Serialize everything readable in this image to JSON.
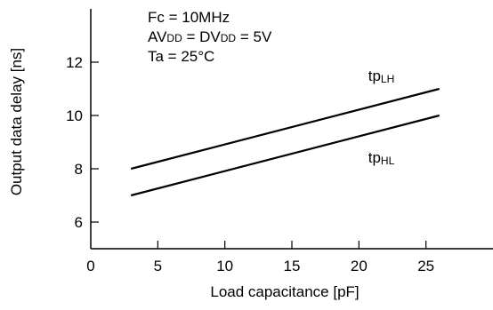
{
  "chart_data": {
    "type": "line",
    "title": "",
    "xlabel": "Load capacitance [pF]",
    "ylabel": "Output data delay [ns]",
    "xlim": [
      0,
      30
    ],
    "ylim": [
      5,
      14
    ],
    "x_ticks": [
      0,
      5,
      10,
      15,
      20,
      25
    ],
    "y_ticks": [
      6,
      8,
      10,
      12
    ],
    "grid": false,
    "conditions": [
      {
        "main": "Fc = 10MHz",
        "parts": [
          {
            "text": "Fc = 10MHz",
            "sub": false
          }
        ]
      },
      {
        "main": "AVDD = DVDD = 5V",
        "parts": [
          {
            "text": "AV",
            "sub": false
          },
          {
            "text": "DD",
            "sub": true
          },
          {
            "text": " = DV",
            "sub": false
          },
          {
            "text": "DD",
            "sub": true
          },
          {
            "text": " = 5V",
            "sub": false
          }
        ]
      },
      {
        "main": "Ta = 25°C",
        "parts": [
          {
            "text": "Ta = 25°C",
            "sub": false
          }
        ]
      }
    ],
    "series": [
      {
        "name": "tpLH",
        "label_main": "tp",
        "label_sub": "LH",
        "x": [
          3,
          26
        ],
        "y": [
          8.0,
          11.0
        ],
        "color": "#000000"
      },
      {
        "name": "tpHL",
        "label_main": "tp",
        "label_sub": "HL",
        "x": [
          3,
          26
        ],
        "y": [
          7.0,
          10.0
        ],
        "color": "#000000"
      }
    ]
  }
}
